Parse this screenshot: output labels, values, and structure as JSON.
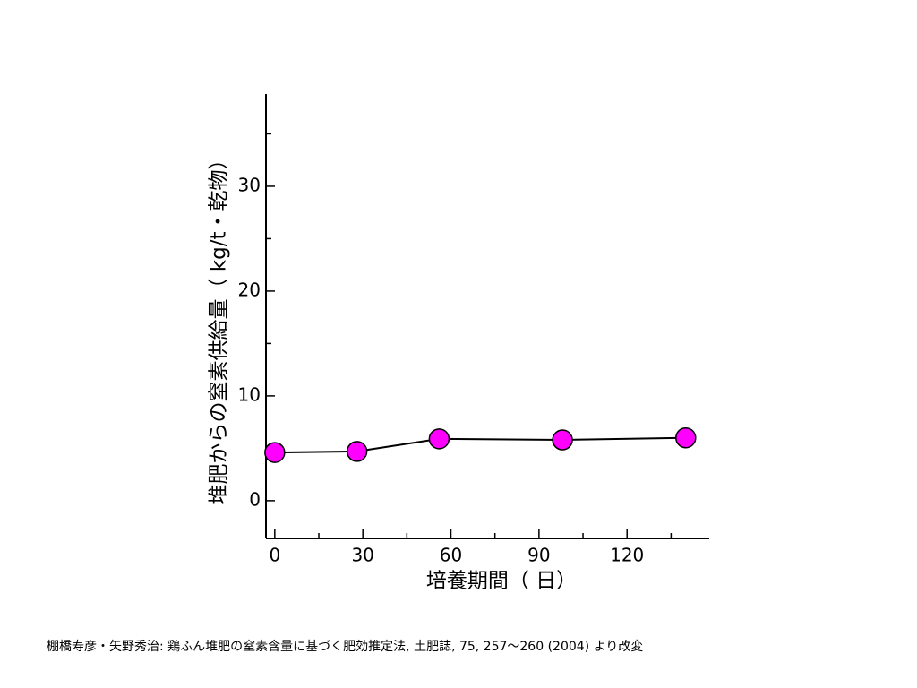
{
  "chart_data": {
    "type": "line",
    "ylabel": "堆肥からの窒素供給量（ kg/t・乾物）",
    "xlabel": "培養期間（ 日）",
    "note": "棚橋寿彦・矢野秀治: 鶏ふん堆肥の窒素含量に基づく肥効推定法, 土肥誌, 75, 257〜260 (2004) より改変",
    "x": [
      0,
      28,
      56,
      98,
      140
    ],
    "series": [
      {
        "color": "#ff00ff",
        "values": [
          4.6,
          4.7,
          5.9,
          5.8,
          6.0
        ]
      }
    ],
    "xlim": [
      -3,
      148
    ],
    "xticks": [
      0,
      30,
      60,
      90,
      120
    ],
    "xminorticks": [
      15,
      45,
      75,
      105,
      135
    ],
    "ylim": [
      -3.6,
      38.8
    ],
    "yticks": [
      0,
      10,
      20,
      30
    ],
    "yminorticks": [
      5,
      15,
      25,
      35
    ]
  }
}
